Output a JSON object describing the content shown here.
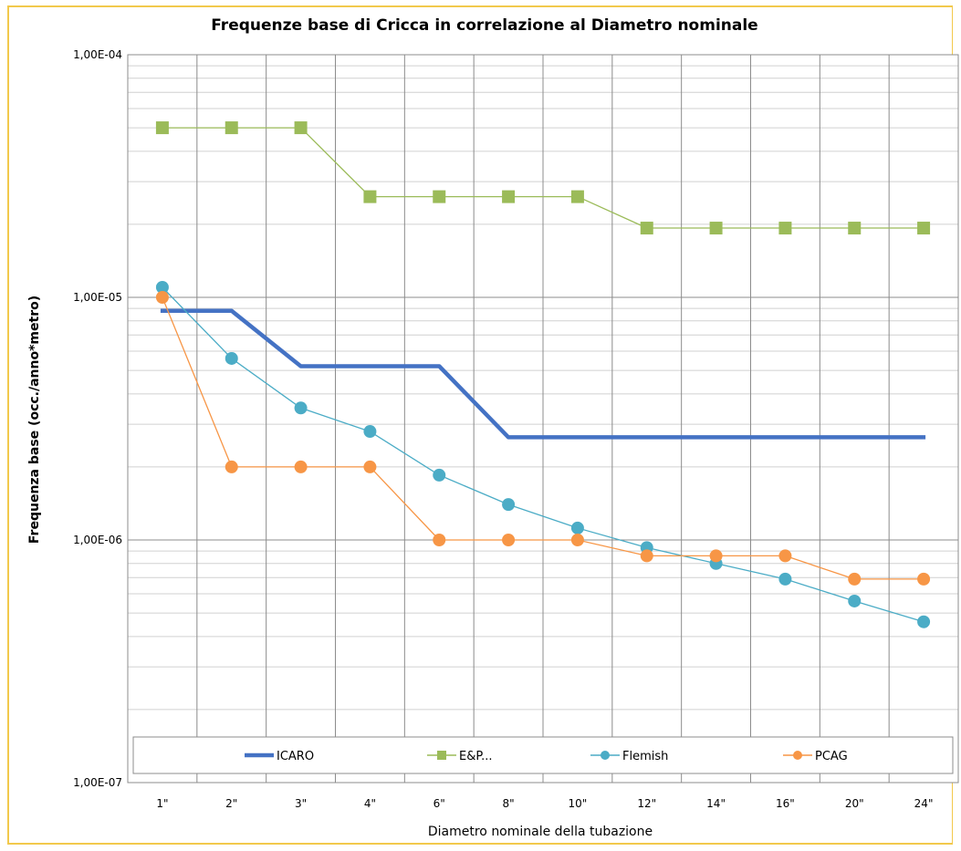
{
  "chart_data": {
    "type": "line",
    "title": "Frequenze base di Cricca in correlazione al Diametro nominale",
    "xlabel": "Diametro nominale della tubazione",
    "ylabel": "Frequenza base (occ./anno*metro)",
    "y_scale": "log",
    "ylim": [
      1e-07,
      0.0001
    ],
    "y_tick_labels": [
      "1,00E-04",
      "1,00E-05",
      "1,00E-06",
      "1,00E-07"
    ],
    "grid": true,
    "legend_position": "bottom",
    "categories": [
      "1\"",
      "2\"",
      "3\"",
      "4\"",
      "6\"",
      "8\"",
      "10\"",
      "12\"",
      "14\"",
      "16\"",
      "20\"",
      "24\""
    ],
    "series": [
      {
        "name": "ICARO",
        "color": "#4472c4",
        "marker": "none",
        "values": [
          8.8e-06,
          8.8e-06,
          5.2e-06,
          5.2e-06,
          5.2e-06,
          2.65e-06,
          2.65e-06,
          2.65e-06,
          2.65e-06,
          2.65e-06,
          2.65e-06,
          2.65e-06
        ]
      },
      {
        "name": "E&P...",
        "color": "#9bbb59",
        "marker": "square",
        "values": [
          5e-05,
          5e-05,
          5e-05,
          2.6e-05,
          2.6e-05,
          2.6e-05,
          2.6e-05,
          1.93e-05,
          1.93e-05,
          1.93e-05,
          1.93e-05,
          1.93e-05
        ]
      },
      {
        "name": "Flemish",
        "color": "#4bacc6",
        "marker": "circle",
        "values": [
          1.1e-05,
          5.6e-06,
          3.5e-06,
          2.8e-06,
          1.85e-06,
          1.4e-06,
          1.12e-06,
          9.3e-07,
          8e-07,
          6.9e-07,
          5.6e-07,
          4.6e-07
        ]
      },
      {
        "name": "PCAG",
        "color": "#f79646",
        "marker": "circle",
        "values": [
          1e-05,
          2e-06,
          2e-06,
          2e-06,
          1e-06,
          1e-06,
          1e-06,
          8.6e-07,
          8.6e-07,
          8.6e-07,
          6.9e-07,
          6.9e-07
        ]
      }
    ]
  }
}
